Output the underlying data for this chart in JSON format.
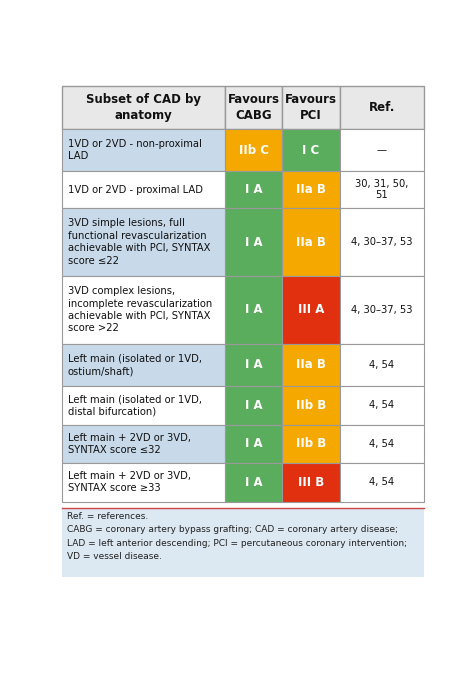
{
  "header": [
    "Subset of CAD by\nanatomy",
    "Favours\nCABG",
    "Favours\nPCI",
    "Ref."
  ],
  "rows": [
    {
      "label": "1VD or 2VD - non-proximal\nLAD",
      "cabg_text": "IIb C",
      "cabg_color": "#F5A800",
      "pci_text": "I C",
      "pci_color": "#5BAD5E",
      "ref": "—",
      "label_bg": "#c8daea"
    },
    {
      "label": "1VD or 2VD - proximal LAD",
      "cabg_text": "I A",
      "cabg_color": "#5BAD5E",
      "pci_text": "IIa B",
      "pci_color": "#F5A800",
      "ref": "30, 31, 50,\n51",
      "label_bg": "#ffffff"
    },
    {
      "label": "3VD simple lesions, full\nfunctional revascularization\nachievable with PCI, SYNTAX\nscore ≤22",
      "cabg_text": "I A",
      "cabg_color": "#5BAD5E",
      "pci_text": "IIa B",
      "pci_color": "#F5A800",
      "ref": "4, 30–37, 53",
      "label_bg": "#c8daea"
    },
    {
      "label": "3VD complex lesions,\nincomplete revascularization\nachievable with PCI, SYNTAX\nscore >22",
      "cabg_text": "I A",
      "cabg_color": "#5BAD5E",
      "pci_text": "III A",
      "pci_color": "#E03010",
      "ref": "4, 30–37, 53",
      "label_bg": "#ffffff"
    },
    {
      "label": "Left main (isolated or 1VD,\nostium/shaft)",
      "cabg_text": "I A",
      "cabg_color": "#5BAD5E",
      "pci_text": "IIa B",
      "pci_color": "#F5A800",
      "ref": "4, 54",
      "label_bg": "#c8daea"
    },
    {
      "label": "Left main (isolated or 1VD,\ndistal bifurcation)",
      "cabg_text": "I A",
      "cabg_color": "#5BAD5E",
      "pci_text": "IIb B",
      "pci_color": "#F5A800",
      "ref": "4, 54",
      "label_bg": "#ffffff"
    },
    {
      "label": "Left main + 2VD or 3VD,\nSYNTAX score ≤32",
      "cabg_text": "I A",
      "cabg_color": "#5BAD5E",
      "pci_text": "IIb B",
      "pci_color": "#F5A800",
      "ref": "4, 54",
      "label_bg": "#c8daea"
    },
    {
      "label": "Left main + 2VD or 3VD,\nSYNTAX score ≥33",
      "cabg_text": "I A",
      "cabg_color": "#5BAD5E",
      "pci_text": "III B",
      "pci_color": "#E03010",
      "ref": "4, 54",
      "label_bg": "#ffffff"
    }
  ],
  "footer_lines": [
    "Ref. = references.",
    "CABG = coronary artery bypass grafting; CAD = coronary artery disease;",
    "LAD = left anterior descending; PCI = percutaneous coronary intervention;",
    "VD = vessel disease."
  ],
  "header_bg": "#e8e8e8",
  "footer_bg": "#dce8f2",
  "border_color": "#999999"
}
